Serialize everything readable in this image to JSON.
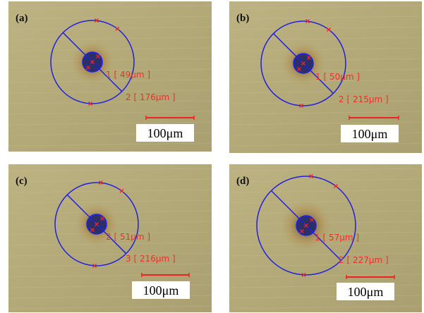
{
  "panels": [
    {
      "label": "(a)",
      "inner_label": "1 [ 49μm ]",
      "outer_label": "2 [ 176μm ]",
      "scale": "100μm"
    },
    {
      "label": "(b)",
      "inner_label": "1 [ 50μm ]",
      "outer_label": "2 [ 215μm ]",
      "scale": "100μm"
    },
    {
      "label": "(c)",
      "inner_label": "2 [ 51μm ]",
      "outer_label": "3 [ 216μm ]",
      "scale": "100μm"
    },
    {
      "label": "(d)",
      "inner_label": "1 [ 57μm ]",
      "outer_label": "2 [ 227μm ]",
      "scale": "100μm"
    }
  ]
}
